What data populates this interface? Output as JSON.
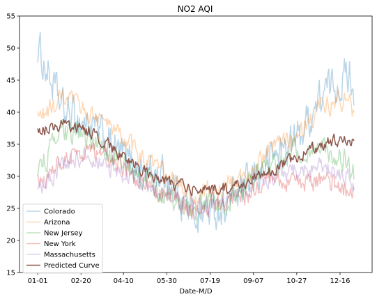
{
  "chart_data": {
    "type": "line",
    "title": "NO2 AQI",
    "xlabel": "Date-M/D",
    "ylabel": "",
    "x_tick_labels": [
      "01-01",
      "02-20",
      "04-10",
      "05-30",
      "07-19",
      "09-07",
      "10-27",
      "12-16"
    ],
    "x_tick_days": [
      1,
      51,
      100,
      150,
      200,
      250,
      300,
      350
    ],
    "x_range_days": [
      -20,
      387
    ],
    "ylim": [
      15,
      55
    ],
    "y_ticks": [
      15,
      20,
      25,
      30,
      35,
      40,
      45,
      50,
      55
    ],
    "grid": false,
    "legend_placement": "lower-left",
    "day_of_year_samples": [
      1,
      31,
      61,
      91,
      121,
      151,
      181,
      211,
      241,
      271,
      301,
      331,
      361,
      366
    ],
    "series": [
      {
        "name": "Colorado",
        "color": "#1f77b4",
        "opacity": 0.3,
        "line_width": 1.5,
        "noise": 4.8,
        "values": [
          50,
          40,
          38,
          34,
          31,
          30,
          24,
          25,
          28,
          33,
          36,
          43,
          46,
          44
        ]
      },
      {
        "name": "Arizona",
        "color": "#ff7f0e",
        "opacity": 0.3,
        "line_width": 1.5,
        "noise": 2.6,
        "values": [
          39,
          42,
          40,
          37,
          33,
          30,
          27,
          28,
          30,
          34,
          37,
          41,
          42,
          39
        ]
      },
      {
        "name": "New Jersey",
        "color": "#2ca02c",
        "opacity": 0.3,
        "line_width": 1.5,
        "noise": 3.0,
        "values": [
          31,
          37,
          36,
          33,
          30,
          27,
          25,
          26,
          28,
          32,
          34,
          34,
          32,
          30
        ]
      },
      {
        "name": "New York",
        "color": "#d62728",
        "opacity": 0.3,
        "line_width": 1.5,
        "noise": 2.4,
        "values": [
          29,
          33,
          34,
          32,
          29,
          27,
          25,
          26,
          27,
          29,
          29,
          29,
          28,
          27
        ]
      },
      {
        "name": "Massachusetts",
        "color": "#9467bd",
        "opacity": 0.3,
        "line_width": 1.5,
        "noise": 2.4,
        "values": [
          28,
          32,
          33,
          31,
          29,
          27,
          25,
          26,
          28,
          30,
          31,
          31,
          30,
          29
        ]
      },
      {
        "name": "Predicted Curve",
        "color": "#8c564b",
        "opacity": 1.0,
        "line_width": 1.5,
        "noise": 1.5,
        "values": [
          37,
          38,
          37,
          34,
          31,
          29,
          28,
          28,
          29,
          31,
          33,
          35,
          36,
          35
        ]
      }
    ]
  }
}
